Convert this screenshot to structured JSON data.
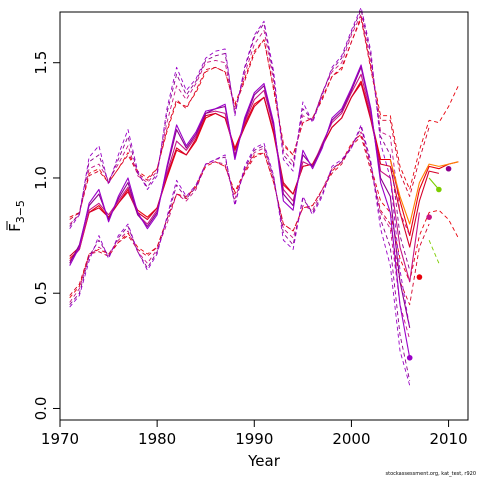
{
  "chart_data": {
    "type": "line",
    "xlabel": "Year",
    "ylabel_main": "F",
    "ylabel_subscript": "3−5",
    "xlim": [
      1970,
      2012
    ],
    "ylim": [
      -0.05,
      1.72
    ],
    "xticks": [
      1970,
      1980,
      1990,
      2000,
      2010
    ],
    "yticks": [
      0.0,
      0.5,
      1.0,
      1.5
    ],
    "ytick_labels": [
      "0.0",
      "0.5",
      "1.0",
      "1.5"
    ],
    "years": [
      1971,
      1972,
      1973,
      1974,
      1975,
      1976,
      1977,
      1978,
      1979,
      1980,
      1981,
      1982,
      1983,
      1984,
      1985,
      1986,
      1987,
      1988,
      1989,
      1990,
      1991,
      1992,
      1993,
      1994,
      1995,
      1996,
      1997,
      1998,
      1999,
      2000,
      2001,
      2002,
      2003,
      2004,
      2005,
      2006,
      2007,
      2008,
      2009,
      2010,
      2011
    ],
    "colors": {
      "red": "#e8000b",
      "crimson": "#d4002a",
      "magenta": "#c71585",
      "purple": "#8b008b",
      "violet": "#9a00c8",
      "orange": "#ff7f00",
      "green": "#7ccd00"
    },
    "series": [
      {
        "color": "red",
        "kind": "estimate",
        "values": [
          0.65,
          0.69,
          0.85,
          0.88,
          0.83,
          0.89,
          0.95,
          0.86,
          0.83,
          0.87,
          1.0,
          1.12,
          1.1,
          1.16,
          1.26,
          1.28,
          1.26,
          1.13,
          1.23,
          1.32,
          1.35,
          1.19,
          0.97,
          0.93,
          1.05,
          1.06,
          1.14,
          1.22,
          1.26,
          1.35,
          1.42,
          1.26,
          1.08,
          1.08,
          0.9,
          0.75,
          0.95,
          1.05,
          1.04,
          1.06,
          1.07
        ]
      },
      {
        "color": "red",
        "kind": "upper",
        "values": [
          0.83,
          0.85,
          1.02,
          1.04,
          0.98,
          1.04,
          1.11,
          1.03,
          1.0,
          1.04,
          1.2,
          1.33,
          1.31,
          1.37,
          1.46,
          1.48,
          1.46,
          1.32,
          1.43,
          1.55,
          1.6,
          1.38,
          1.14,
          1.1,
          1.24,
          1.26,
          1.35,
          1.44,
          1.47,
          1.59,
          1.7,
          1.48,
          1.27,
          1.27,
          1.05,
          0.95,
          1.12,
          1.25,
          1.24,
          1.31,
          1.4
        ]
      },
      {
        "color": "red",
        "kind": "lower",
        "values": [
          0.48,
          0.53,
          0.67,
          0.69,
          0.67,
          0.72,
          0.76,
          0.7,
          0.67,
          0.7,
          0.82,
          0.93,
          0.92,
          0.96,
          1.05,
          1.07,
          1.05,
          0.94,
          1.03,
          1.1,
          1.11,
          0.98,
          0.8,
          0.77,
          0.87,
          0.88,
          0.95,
          1.03,
          1.07,
          1.15,
          1.19,
          1.05,
          0.9,
          0.85,
          0.65,
          0.55,
          0.75,
          0.85,
          0.86,
          0.82,
          0.74
        ]
      },
      {
        "color": "crimson",
        "kind": "estimate",
        "values": [
          0.66,
          0.7,
          0.85,
          0.87,
          0.83,
          0.89,
          0.94,
          0.85,
          0.82,
          0.87,
          1.01,
          1.13,
          1.1,
          1.17,
          1.27,
          1.28,
          1.26,
          1.12,
          1.22,
          1.31,
          1.35,
          1.2,
          0.98,
          0.93,
          1.05,
          1.06,
          1.14,
          1.22,
          1.26,
          1.35,
          1.41,
          1.25,
          1.06,
          1.05,
          0.85,
          0.7,
          0.9,
          1.03,
          1.02,
          null,
          null
        ]
      },
      {
        "color": "crimson",
        "kind": "upper",
        "values": [
          0.82,
          0.85,
          1.01,
          1.03,
          0.98,
          1.04,
          1.1,
          1.02,
          0.99,
          1.04,
          1.21,
          1.34,
          1.3,
          1.38,
          1.47,
          1.48,
          1.46,
          1.31,
          1.42,
          1.54,
          1.6,
          1.39,
          1.15,
          1.1,
          1.24,
          1.26,
          1.34,
          1.44,
          1.48,
          1.59,
          1.69,
          1.47,
          1.25,
          1.25,
          1.02,
          0.92,
          1.08,
          1.22,
          null,
          null,
          null
        ]
      },
      {
        "color": "crimson",
        "kind": "lower",
        "values": [
          0.49,
          0.54,
          0.67,
          0.68,
          0.66,
          0.72,
          0.75,
          0.69,
          0.66,
          0.7,
          0.82,
          0.93,
          0.91,
          0.97,
          1.06,
          1.07,
          1.05,
          0.93,
          1.02,
          1.09,
          1.11,
          0.98,
          0.8,
          0.77,
          0.87,
          0.88,
          0.95,
          1.02,
          1.06,
          1.14,
          1.18,
          1.03,
          0.86,
          0.8,
          0.55,
          0.45,
          0.7,
          0.8,
          null,
          null,
          null
        ]
      },
      {
        "color": "magenta",
        "kind": "estimate",
        "values": [
          0.64,
          0.69,
          0.86,
          0.89,
          0.84,
          0.9,
          0.96,
          0.84,
          0.8,
          0.86,
          1.02,
          1.16,
          1.12,
          1.18,
          1.28,
          1.29,
          1.28,
          1.1,
          1.24,
          1.34,
          1.38,
          1.22,
          0.95,
          0.9,
          1.07,
          1.05,
          1.15,
          1.24,
          1.28,
          1.37,
          1.45,
          1.27,
          1.03,
          1.0,
          0.7,
          0.55,
          0.85,
          null,
          null,
          null,
          null
        ]
      },
      {
        "color": "magenta",
        "kind": "upper",
        "values": [
          0.8,
          0.84,
          1.04,
          1.06,
          0.99,
          1.06,
          1.14,
          1.01,
          0.98,
          1.03,
          1.24,
          1.4,
          1.34,
          1.41,
          1.5,
          1.51,
          1.5,
          1.29,
          1.45,
          1.58,
          1.64,
          1.42,
          1.12,
          1.07,
          1.27,
          1.25,
          1.37,
          1.46,
          1.5,
          1.62,
          1.71,
          1.5,
          1.2,
          1.18,
          0.85,
          0.75,
          null,
          null,
          null,
          null,
          null
        ]
      },
      {
        "color": "magenta",
        "kind": "lower",
        "values": [
          0.46,
          0.52,
          0.66,
          0.7,
          0.67,
          0.73,
          0.77,
          0.68,
          0.63,
          0.69,
          0.8,
          0.93,
          0.9,
          0.95,
          1.06,
          1.07,
          1.06,
          0.91,
          1.03,
          1.11,
          1.13,
          0.99,
          0.78,
          0.74,
          0.88,
          0.86,
          0.95,
          1.04,
          1.07,
          1.14,
          1.2,
          1.05,
          0.85,
          0.78,
          0.45,
          0.3,
          null,
          null,
          null,
          null,
          null
        ]
      },
      {
        "color": "purple",
        "kind": "estimate",
        "values": [
          0.63,
          0.71,
          0.88,
          0.93,
          0.82,
          0.91,
          0.98,
          0.84,
          0.79,
          0.85,
          1.04,
          1.21,
          1.13,
          1.19,
          1.28,
          1.3,
          1.31,
          1.09,
          1.25,
          1.36,
          1.4,
          1.23,
          0.93,
          0.88,
          1.1,
          1.05,
          1.14,
          1.25,
          1.29,
          1.38,
          1.48,
          1.29,
          1.0,
          0.92,
          0.55,
          0.35,
          null,
          null,
          null,
          null,
          null
        ]
      },
      {
        "color": "purple",
        "kind": "upper",
        "values": [
          0.79,
          0.85,
          1.07,
          1.1,
          0.98,
          1.08,
          1.18,
          1.02,
          0.96,
          1.02,
          1.28,
          1.45,
          1.36,
          1.42,
          1.51,
          1.53,
          1.54,
          1.28,
          1.47,
          1.61,
          1.67,
          1.44,
          1.1,
          1.05,
          1.3,
          1.25,
          1.37,
          1.47,
          1.52,
          1.63,
          1.73,
          1.53,
          1.18,
          1.1,
          0.75,
          0.6,
          null,
          null,
          null,
          null,
          null
        ]
      },
      {
        "color": "purple",
        "kind": "lower",
        "values": [
          0.45,
          0.5,
          0.66,
          0.73,
          0.66,
          0.74,
          0.79,
          0.68,
          0.61,
          0.68,
          0.82,
          0.97,
          0.91,
          0.96,
          1.06,
          1.08,
          1.09,
          0.89,
          1.04,
          1.12,
          1.14,
          1.0,
          0.76,
          0.71,
          0.91,
          0.85,
          0.93,
          1.04,
          1.07,
          1.13,
          1.22,
          1.06,
          0.82,
          0.7,
          0.32,
          0.12,
          null,
          null,
          null,
          null,
          null
        ]
      },
      {
        "color": "violet",
        "kind": "estimate",
        "values": [
          0.62,
          0.7,
          0.89,
          0.95,
          0.81,
          0.92,
          1.0,
          0.85,
          0.78,
          0.84,
          1.05,
          1.23,
          1.14,
          1.2,
          1.29,
          1.3,
          1.32,
          1.08,
          1.26,
          1.37,
          1.41,
          1.24,
          0.9,
          0.86,
          1.12,
          1.04,
          1.13,
          1.26,
          1.3,
          1.39,
          1.49,
          1.3,
          0.98,
          0.85,
          0.45,
          0.22,
          null,
          null,
          null,
          null,
          null
        ]
      },
      {
        "color": "violet",
        "kind": "upper",
        "values": [
          0.78,
          0.84,
          1.09,
          1.14,
          0.97,
          1.1,
          1.21,
          1.03,
          0.95,
          1.01,
          1.3,
          1.48,
          1.38,
          1.43,
          1.52,
          1.55,
          1.56,
          1.27,
          1.48,
          1.62,
          1.68,
          1.46,
          1.08,
          1.03,
          1.33,
          1.24,
          1.36,
          1.48,
          1.53,
          1.64,
          1.74,
          1.55,
          1.15,
          1.0,
          0.6,
          0.35,
          null,
          null,
          null,
          null,
          null
        ]
      },
      {
        "color": "violet",
        "kind": "lower",
        "values": [
          0.44,
          0.49,
          0.64,
          0.75,
          0.65,
          0.75,
          0.8,
          0.68,
          0.6,
          0.67,
          0.83,
          0.99,
          0.92,
          0.97,
          1.06,
          1.08,
          1.1,
          0.88,
          1.05,
          1.13,
          1.15,
          1.01,
          0.73,
          0.69,
          0.92,
          0.84,
          0.92,
          1.05,
          1.08,
          1.13,
          1.23,
          1.07,
          0.78,
          0.62,
          0.25,
          0.1,
          null,
          null,
          null,
          null,
          null
        ]
      },
      {
        "color": "orange",
        "kind": "estimate",
        "values": [
          null,
          null,
          null,
          null,
          null,
          null,
          null,
          null,
          null,
          null,
          null,
          null,
          null,
          null,
          null,
          null,
          null,
          null,
          null,
          null,
          null,
          null,
          null,
          null,
          null,
          null,
          null,
          null,
          null,
          null,
          null,
          null,
          null,
          1.08,
          0.92,
          0.8,
          0.98,
          1.06,
          1.05,
          1.06,
          1.07
        ]
      },
      {
        "color": "green",
        "kind": "estimate",
        "values": [
          null,
          null,
          null,
          null,
          null,
          null,
          null,
          null,
          null,
          null,
          null,
          null,
          null,
          null,
          null,
          null,
          null,
          null,
          null,
          null,
          null,
          null,
          null,
          null,
          null,
          null,
          null,
          null,
          null,
          null,
          null,
          null,
          null,
          null,
          null,
          null,
          null,
          1.0,
          0.95,
          null,
          null
        ]
      },
      {
        "color": "green",
        "kind": "lower",
        "values": [
          null,
          null,
          null,
          null,
          null,
          null,
          null,
          null,
          null,
          null,
          null,
          null,
          null,
          null,
          null,
          null,
          null,
          null,
          null,
          null,
          null,
          null,
          null,
          null,
          null,
          null,
          null,
          null,
          null,
          null,
          null,
          null,
          null,
          null,
          null,
          null,
          null,
          0.73,
          0.63,
          null,
          null
        ]
      }
    ],
    "endpoints": [
      {
        "color": "violet",
        "x": 2006,
        "y": 0.22
      },
      {
        "color": "red",
        "x": 2007,
        "y": 0.57
      },
      {
        "color": "magenta",
        "x": 2008,
        "y": 0.83
      },
      {
        "color": "green",
        "x": 2009,
        "y": 0.95
      },
      {
        "color": "purple",
        "x": 2010,
        "y": 1.04
      }
    ]
  },
  "footer": {
    "source_text": "stockassessment.org, kat_test, r920"
  }
}
